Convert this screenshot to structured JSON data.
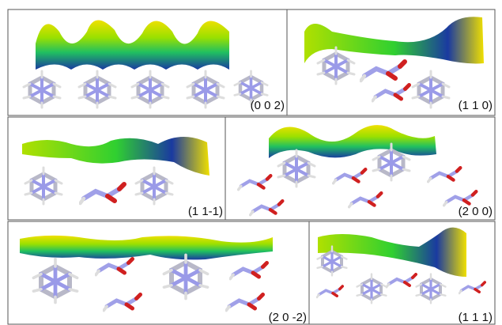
{
  "panels": [
    {
      "label": "(0 0 2)"
    },
    {
      "label": "(1 1 0)"
    },
    {
      "label": "(1 1-1)"
    },
    {
      "label": "(2 0 0)"
    },
    {
      "label": "(2 0 -2)"
    },
    {
      "label": "(1 1 1)"
    }
  ]
}
